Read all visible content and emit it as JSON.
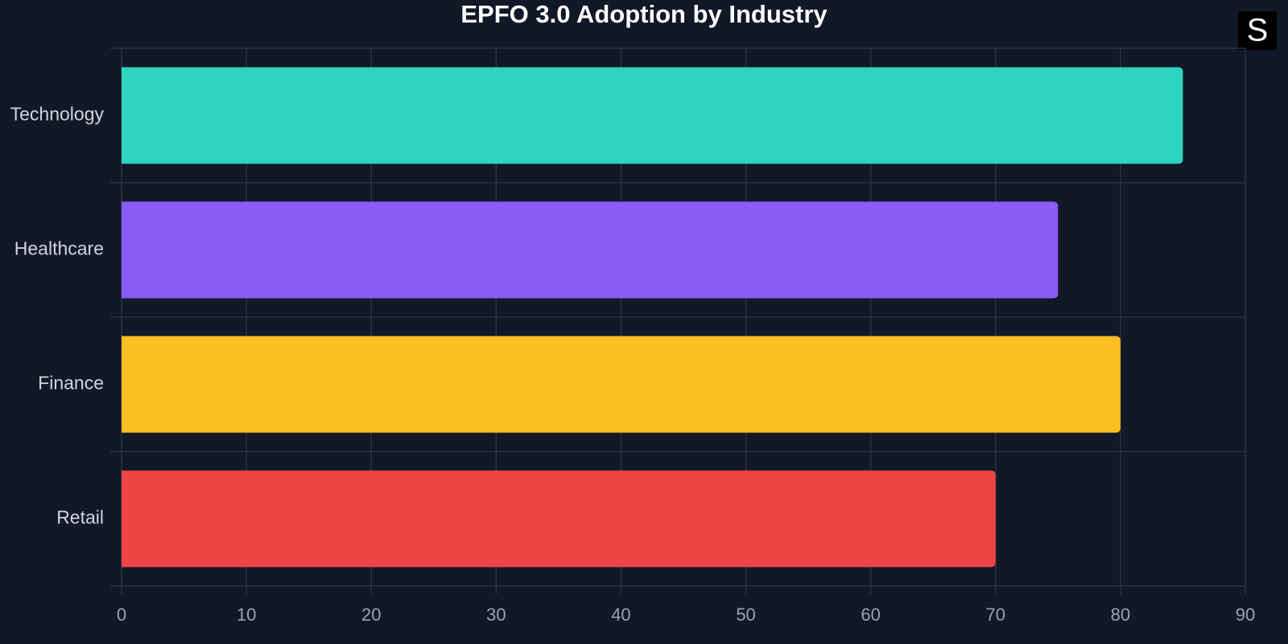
{
  "logo": "S",
  "chart_data": {
    "type": "hbar",
    "title": "EPFO 3.0 Adoption by Industry",
    "categories": [
      "Technology",
      "Healthcare",
      "Finance",
      "Retail"
    ],
    "values": [
      85,
      75,
      80,
      70
    ],
    "colors": [
      "#2dd4bf",
      "#8b5cf6",
      "#fbbf24",
      "#ef4444"
    ],
    "xlim": [
      0,
      90
    ],
    "xticks": [
      0,
      10,
      20,
      30,
      40,
      50,
      60,
      70,
      80,
      90
    ],
    "grid": true
  }
}
